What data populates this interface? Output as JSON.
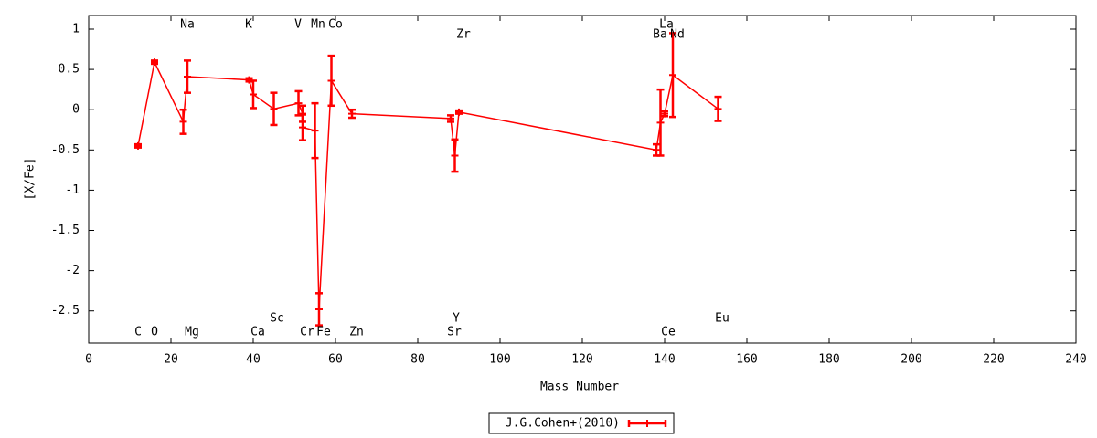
{
  "chart_data": {
    "type": "errorbar-line",
    "xlabel": "Mass Number",
    "ylabel": "[X/Fe]",
    "xlim": [
      0,
      240
    ],
    "xticks": [
      0,
      20,
      40,
      60,
      80,
      100,
      120,
      140,
      160,
      180,
      200,
      220,
      240
    ],
    "ylim": [
      -2.9,
      1.17
    ],
    "yticks": [
      1,
      0.5,
      0,
      -0.5,
      -1,
      -1.5,
      -2,
      -2.5
    ],
    "series": [
      {
        "name": "J.G.Cohen+(2010)",
        "color": "#ff0000",
        "x": [
          12,
          16,
          23,
          24,
          39,
          40,
          45,
          51,
          52,
          52,
          55,
          56,
          59,
          64,
          88,
          89,
          90,
          138,
          139,
          140,
          142,
          153
        ],
        "values": [
          -0.45,
          0.59,
          -0.15,
          0.41,
          0.37,
          0.19,
          0.01,
          0.08,
          -0.05,
          -0.22,
          -0.26,
          -2.48,
          0.36,
          -0.05,
          -0.11,
          -0.57,
          -0.03,
          -0.5,
          -0.16,
          -0.05,
          0.43,
          0.01
        ],
        "errors": [
          0.02,
          0.02,
          0.15,
          0.2,
          0.02,
          0.17,
          0.2,
          0.15,
          0.1,
          0.16,
          0.34,
          0.2,
          0.31,
          0.05,
          0.04,
          0.2,
          0.02,
          0.07,
          0.41,
          0.03,
          0.52,
          0.15
        ]
      }
    ],
    "annotations": [
      "C",
      "O",
      "Na",
      "Mg",
      "K",
      "Ca",
      "Sc",
      "V",
      "Cr",
      "Mn",
      "Fe",
      "Co",
      "Zn",
      "Sr",
      "Y",
      "Zr",
      "Ba",
      "La",
      "Ce",
      "Nd",
      "Eu"
    ],
    "legend": "bottom-center"
  }
}
